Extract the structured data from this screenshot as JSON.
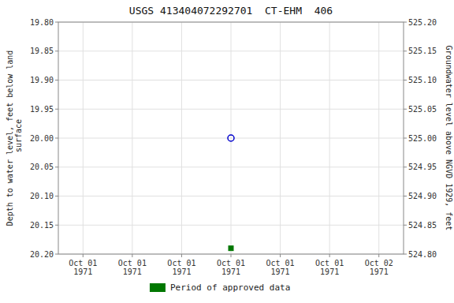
{
  "chart_data": {
    "type": "scatter",
    "title": "USGS 413404072292701  CT-EHM  406",
    "ylabel": "Depth to water level, feet below land\n surface",
    "y2label": "Groundwater level above NGVD 1929, feet",
    "categories": [
      "Oct 01\n1971",
      "Oct 01\n1971",
      "Oct 01\n1971",
      "Oct 01\n1971",
      "Oct 01\n1971",
      "Oct 01\n1971",
      "Oct 02\n1971"
    ],
    "series": [
      {
        "color": "#0000cc",
        "marker": "circle",
        "values": [
          null,
          null,
          null,
          20.0,
          null,
          null,
          null
        ]
      },
      {
        "name": "Period of approved data",
        "color": "#007700",
        "marker": "square",
        "values": [
          null,
          null,
          null,
          20.19,
          null,
          null,
          null
        ]
      }
    ],
    "ylim": [
      20.2,
      19.8
    ],
    "yticks": [
      {
        "value": 19.8,
        "label": "19.80"
      },
      19.85,
      {
        "value": 19.9,
        "label": "19.90"
      },
      19.95,
      {
        "value": 20.0,
        "label": "20.00"
      },
      20.05,
      {
        "value": 20.1,
        "label": "20.10"
      },
      20.15,
      {
        "value": 20.2,
        "label": "20.20"
      }
    ],
    "y2lim": [
      524.8,
      525.2
    ],
    "y2ticks": [
      {
        "value": 524.8,
        "label": "524.80"
      },
      524.85,
      {
        "value": 524.9,
        "label": "524.90"
      },
      524.95,
      {
        "value": 525.0,
        "label": "525.00"
      },
      525.05,
      {
        "value": 525.1,
        "label": "525.10"
      },
      525.15,
      {
        "value": 525.2,
        "label": "525.20"
      }
    ],
    "grid": true,
    "legend": "bottom"
  }
}
